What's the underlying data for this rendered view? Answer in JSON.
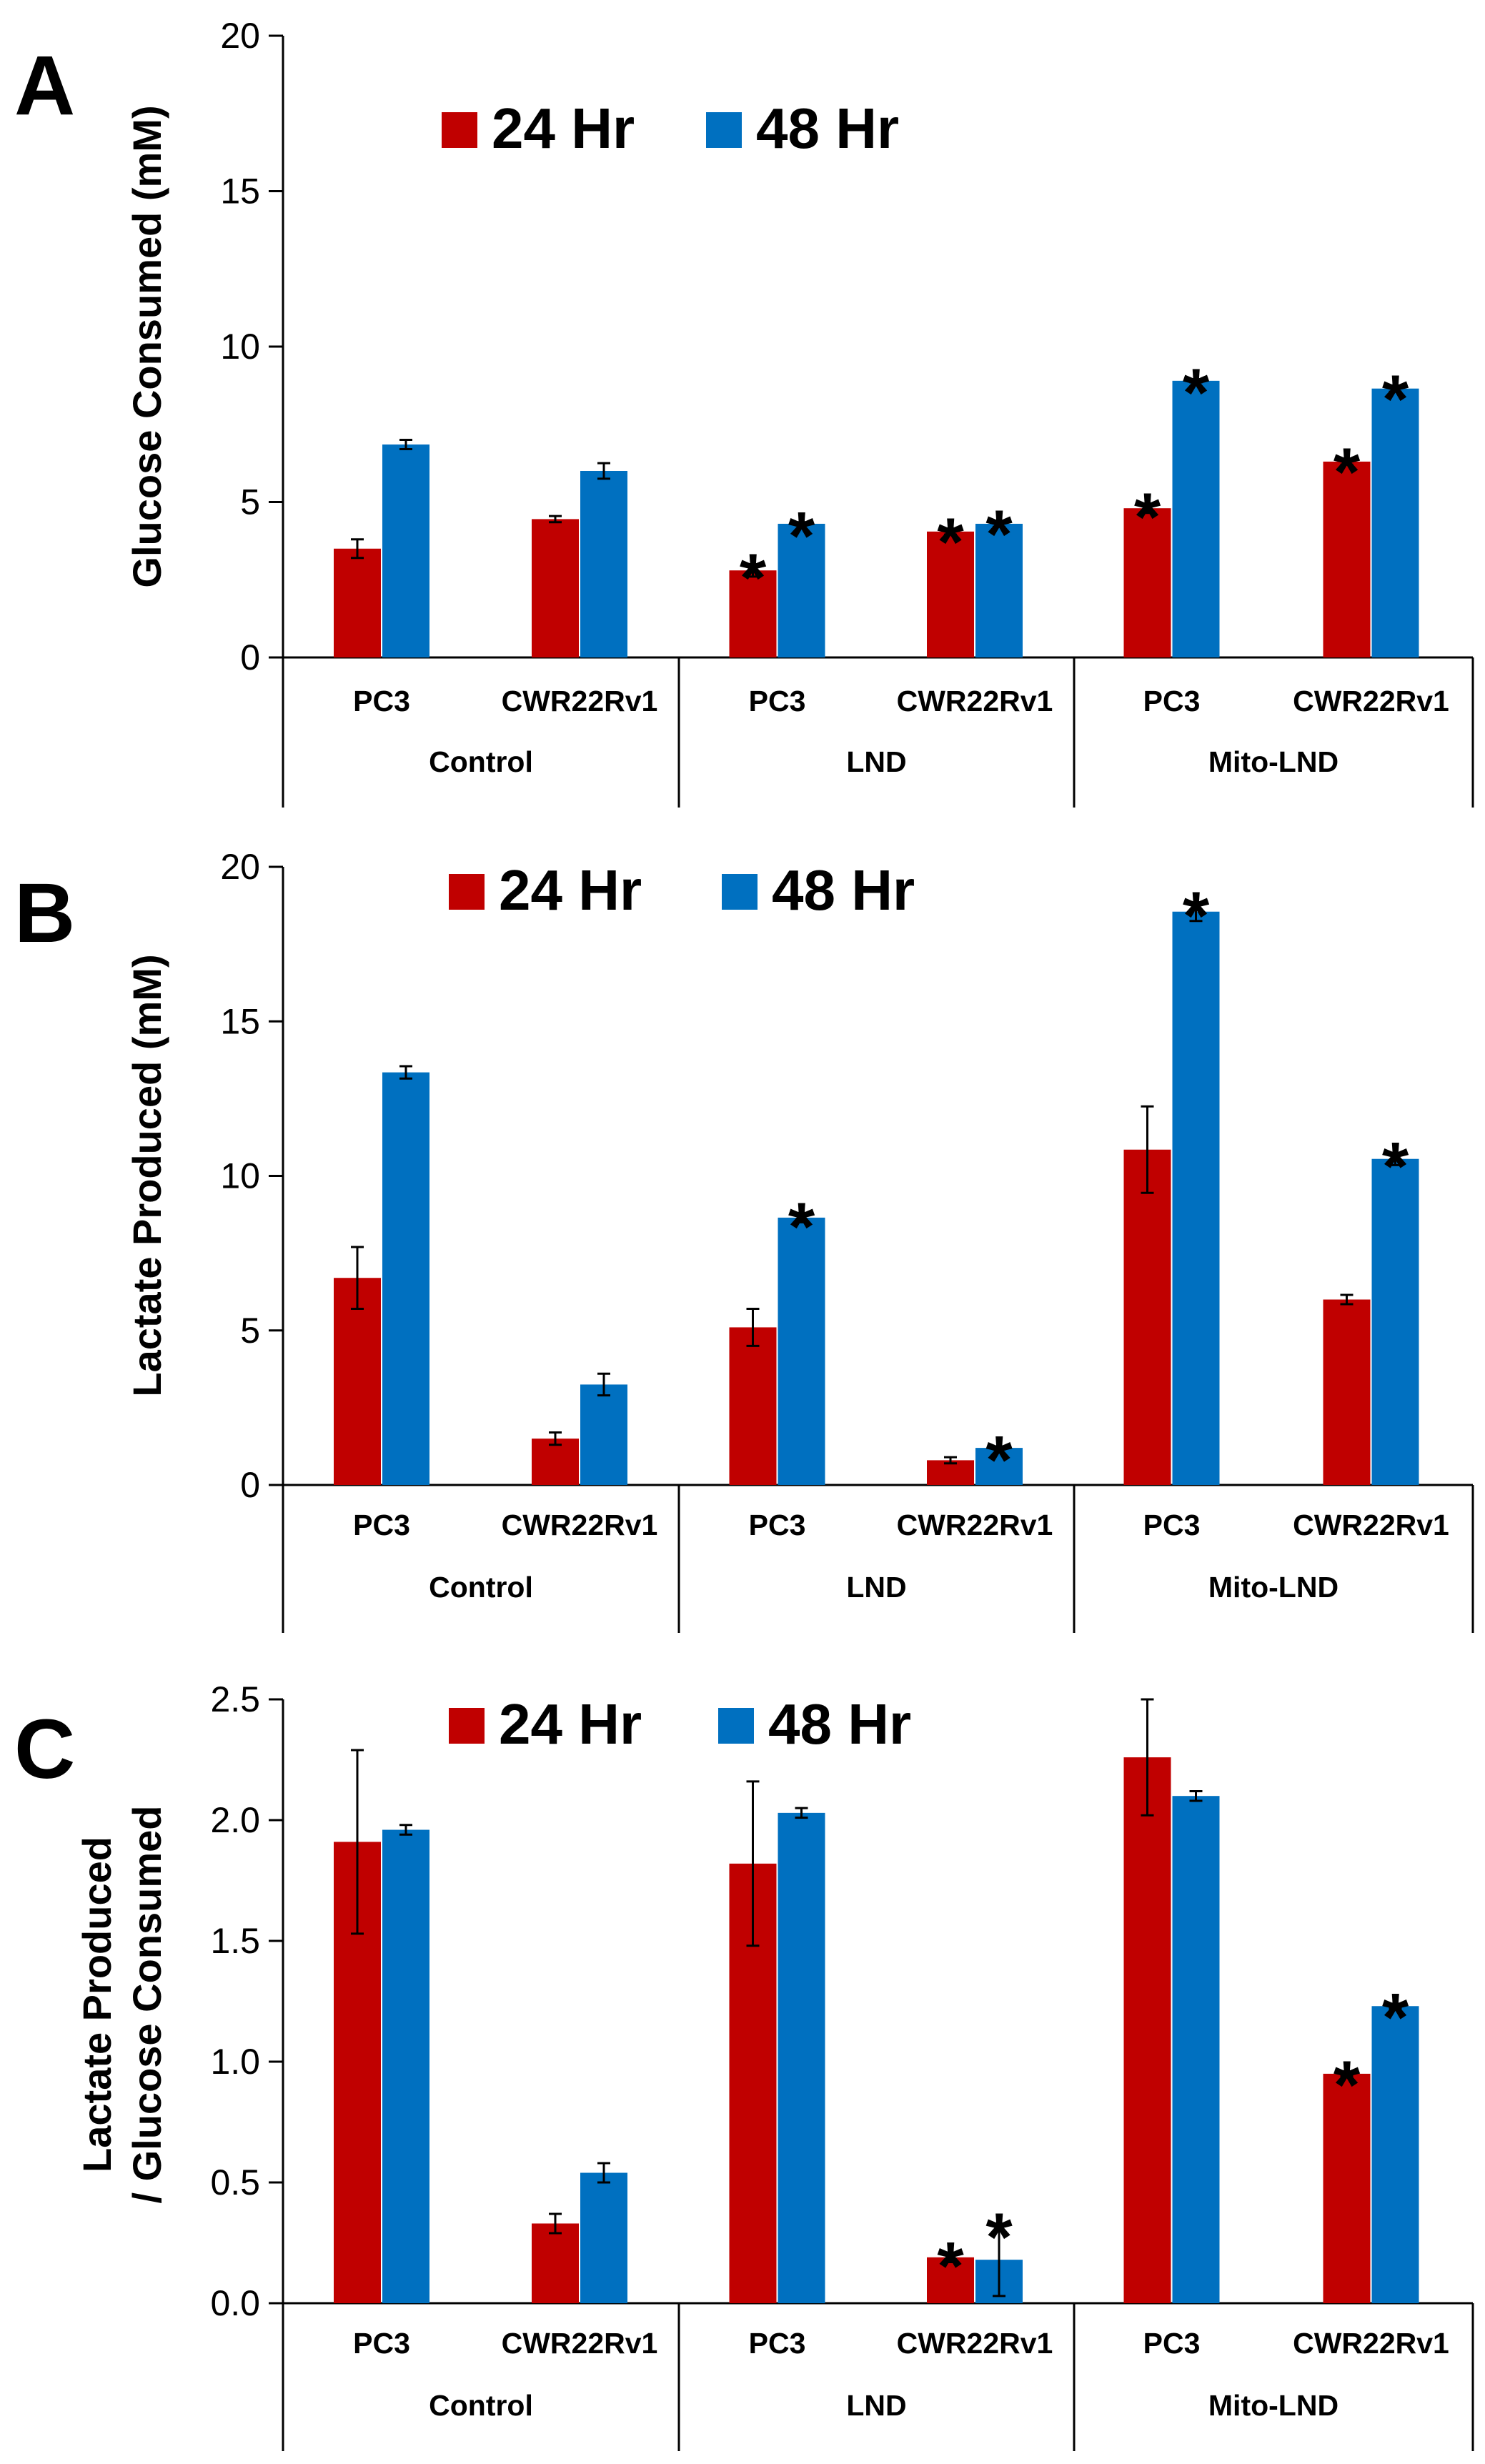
{
  "chart_data": [
    {
      "type": "bar",
      "panel": "A",
      "ylabel": "Glucose Consumed (mM)",
      "ylim": [
        0,
        20
      ],
      "yticks": [
        0,
        5,
        10,
        15,
        20
      ],
      "ytick_labels": [
        "0",
        "5",
        "10",
        "15",
        "20"
      ],
      "legend": [
        "24 Hr",
        "48 Hr"
      ],
      "categories": [
        "PC3",
        "CWR22Rv1",
        "PC3",
        "CWR22Rv1",
        "PC3",
        "CWR22Rv1"
      ],
      "groups": [
        "Control",
        "LND",
        "Mito-LND"
      ],
      "series": [
        {
          "name": "24 Hr",
          "color": "#C00000",
          "values": [
            3.5,
            4.45,
            2.8,
            4.05,
            4.8,
            6.3
          ],
          "errors": [
            0.3,
            0.1,
            0.2,
            0.1,
            0.15,
            0.1
          ],
          "sig": [
            false,
            false,
            true,
            true,
            true,
            true
          ]
        },
        {
          "name": "48 Hr",
          "color": "#0070C0",
          "values": [
            6.85,
            6.0,
            4.3,
            4.3,
            8.9,
            8.65
          ],
          "errors": [
            0.15,
            0.25,
            0.05,
            0.1,
            0.05,
            0.1
          ],
          "sig": [
            false,
            false,
            true,
            true,
            true,
            true
          ]
        }
      ],
      "star": "*"
    },
    {
      "type": "bar",
      "panel": "B",
      "ylabel": "Lactate Produced (mM)",
      "ylim": [
        0,
        20
      ],
      "yticks": [
        0,
        5,
        10,
        15,
        20
      ],
      "ytick_labels": [
        "0",
        "5",
        "10",
        "15",
        "20"
      ],
      "legend": [
        "24 Hr",
        "48 Hr"
      ],
      "categories": [
        "PC3",
        "CWR22Rv1",
        "PC3",
        "CWR22Rv1",
        "PC3",
        "CWR22Rv1"
      ],
      "groups": [
        "Control",
        "LND",
        "Mito-LND"
      ],
      "series": [
        {
          "name": "24 Hr",
          "color": "#C00000",
          "values": [
            6.7,
            1.5,
            5.1,
            0.8,
            10.85,
            6.0
          ],
          "errors": [
            1.0,
            0.2,
            0.6,
            0.1,
            1.4,
            0.15
          ],
          "sig": [
            false,
            false,
            false,
            false,
            false,
            false
          ]
        },
        {
          "name": "48 Hr",
          "color": "#0070C0",
          "values": [
            13.35,
            3.25,
            8.65,
            1.2,
            18.55,
            10.55
          ],
          "errors": [
            0.2,
            0.35,
            0.15,
            0.05,
            0.3,
            0.2
          ],
          "sig": [
            false,
            false,
            true,
            true,
            true,
            true
          ]
        }
      ],
      "star": "*"
    },
    {
      "type": "bar",
      "panel": "C",
      "ylabel": "Lactate Produced / Glucose Consumed",
      "ylabel_lines": [
        "Lactate Produced",
        "/ Glucose Consumed"
      ],
      "ylim": [
        0,
        2.5
      ],
      "yticks": [
        0,
        0.5,
        1.0,
        1.5,
        2.0,
        2.5
      ],
      "ytick_labels": [
        "0.0",
        "0.5",
        "1.0",
        "1.5",
        "2.0",
        "2.5"
      ],
      "legend": [
        "24 Hr",
        "48 Hr"
      ],
      "categories": [
        "PC3",
        "CWR22Rv1",
        "PC3",
        "CWR22Rv1",
        "PC3",
        "CWR22Rv1"
      ],
      "groups": [
        "Control",
        "LND",
        "Mito-LND"
      ],
      "series": [
        {
          "name": "24 Hr",
          "color": "#C00000",
          "values": [
            1.91,
            0.33,
            1.82,
            0.19,
            2.26,
            0.95
          ],
          "errors": [
            0.38,
            0.04,
            0.34,
            0.02,
            0.24,
            0.01
          ],
          "sig": [
            false,
            false,
            false,
            true,
            false,
            true
          ]
        },
        {
          "name": "48 Hr",
          "color": "#0070C0",
          "values": [
            1.96,
            0.54,
            2.03,
            0.18,
            2.1,
            1.23
          ],
          "errors": [
            0.02,
            0.04,
            0.02,
            0.15,
            0.02,
            0.01
          ],
          "sig": [
            false,
            false,
            false,
            true,
            false,
            true
          ]
        }
      ],
      "star": "*"
    }
  ]
}
